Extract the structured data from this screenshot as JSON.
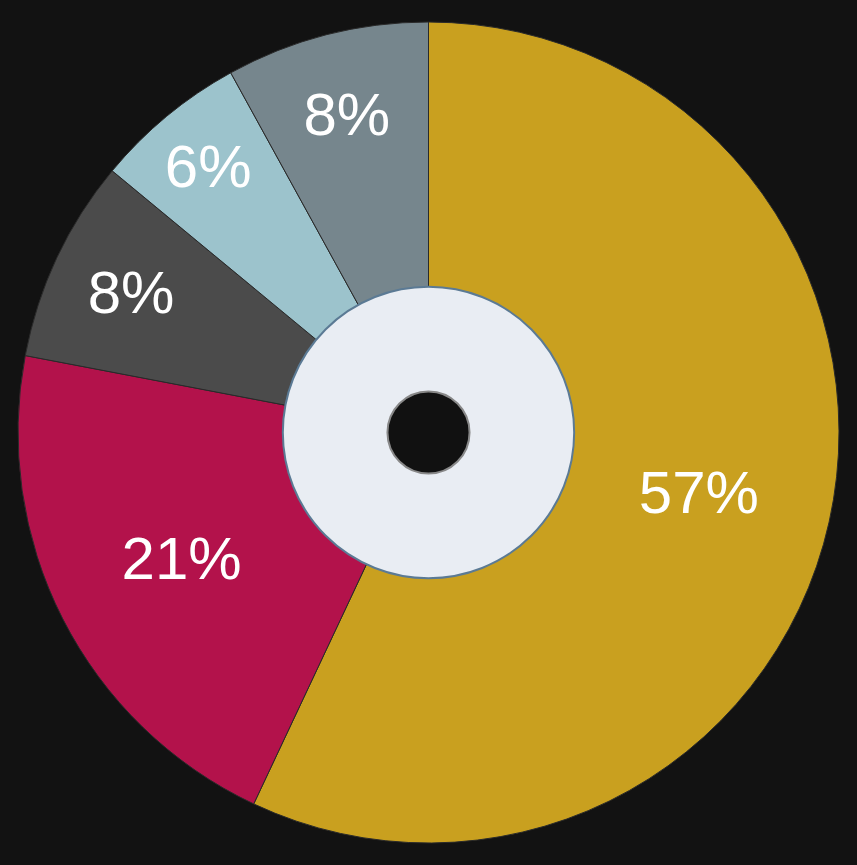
{
  "chart_data": {
    "type": "pie",
    "values": [
      57,
      21,
      8,
      6,
      8
    ],
    "value_labels": [
      "57%",
      "21%",
      "8%",
      "6%",
      "8%"
    ],
    "colors": [
      "#c9a01f",
      "#b3124b",
      "#4b4b4b",
      "#9cc3cc",
      "#76868d"
    ],
    "data_labels": true
  }
}
